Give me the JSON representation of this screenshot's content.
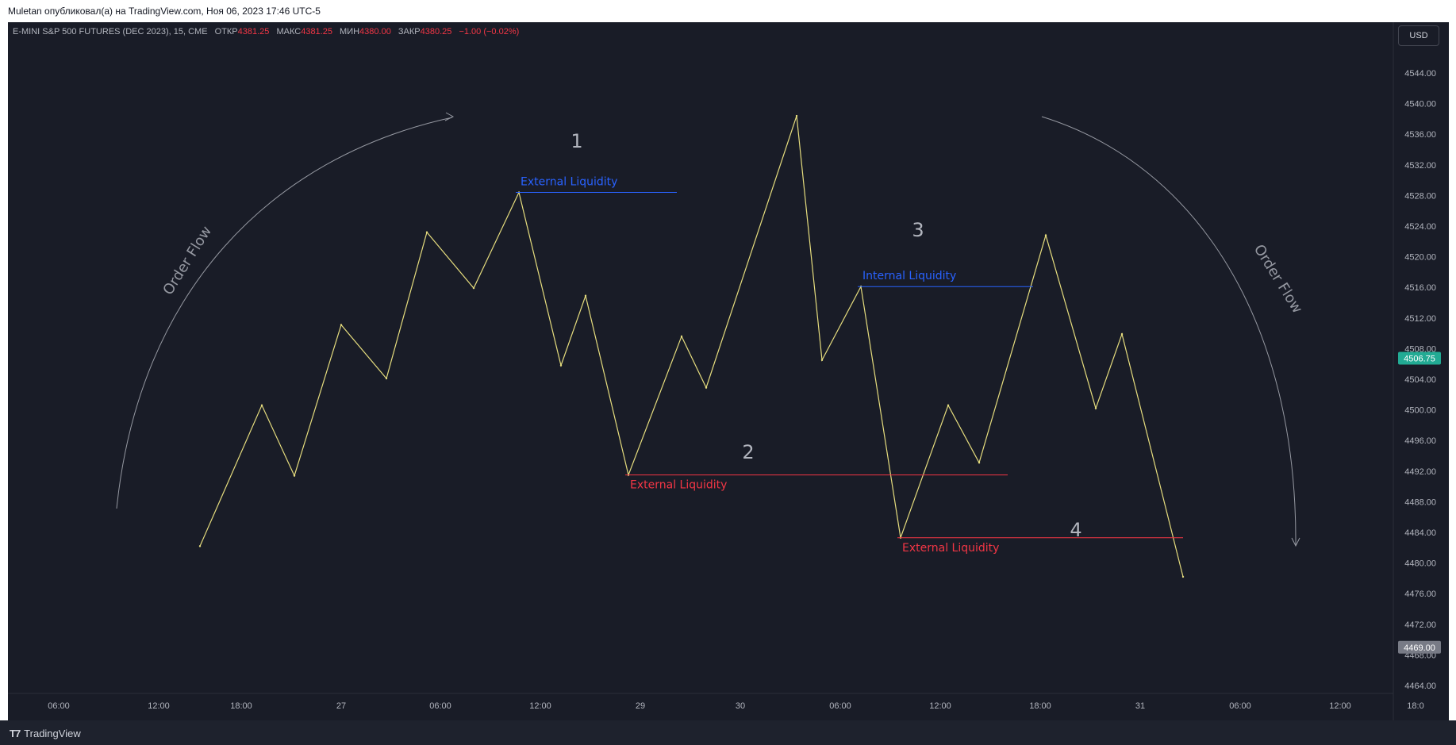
{
  "header": {
    "publisher_text": "Muletan опубликовал(а) на TradingView.com, Ноя 06, 2023 17:46 UTC-5"
  },
  "legend": {
    "symbol": "E-MINI S&P 500 FUTURES (DEC 2023), 15, CME",
    "open_label": "ОТКР",
    "open_value": "4381.25",
    "high_label": "МАКС",
    "high_value": "4381.25",
    "low_label": "МИН",
    "low_value": "4380.00",
    "close_label": "ЗАКР",
    "close_value": "4380.25",
    "change": "−1.00 (−0.02%)"
  },
  "currency_button": "USD",
  "footer": {
    "brand": "TradingView",
    "logo_icon": "tradingview-logo-icon"
  },
  "colors": {
    "background": "#191c27",
    "price_line": "#e6dd7e",
    "blue_liquidity": "#2962ff",
    "red_liquidity": "#f23645",
    "current_price_badge": "#22ab94",
    "marker_badge": "#787b86"
  },
  "chart_data": {
    "type": "line",
    "ylim": [
      4462,
      4547
    ],
    "y_ticks": [
      "4544.00",
      "4540.00",
      "4536.00",
      "4532.00",
      "4528.00",
      "4524.00",
      "4520.00",
      "4516.00",
      "4512.00",
      "4508.00",
      "4504.00",
      "4500.00",
      "4496.00",
      "4492.00",
      "4488.00",
      "4484.00",
      "4480.00",
      "4476.00",
      "4472.00",
      "4468.00",
      "4464.00"
    ],
    "x_ticks": [
      "06:00",
      "12:00",
      "18:00",
      "27",
      "06:00",
      "12:00",
      "29",
      "30",
      "06:00",
      "12:00",
      "18:00",
      "31",
      "06:00",
      "12:00",
      "18:0"
    ],
    "series": [
      {
        "values": [
          4482.2,
          4500.6,
          4491.4,
          4511.1,
          4504.1,
          4523.2,
          4515.9,
          4528.4,
          4505.8,
          4514.9,
          4491.5,
          4509.6,
          4502.9,
          4538.4,
          4506.5,
          4516.1,
          4483.3,
          4500.6,
          4493.1,
          4522.8,
          4500.2,
          4509.9,
          4478.2
        ]
      }
    ],
    "current_price": "4506.75",
    "marker_price": "4469.00",
    "annotations": [
      {
        "type": "hline",
        "label": "External Liquidity",
        "color": "blue",
        "y": 4528.4,
        "from_point": 7,
        "to_point": 12
      },
      {
        "type": "hline",
        "label": "Internal Liquidity",
        "color": "blue",
        "y": 4516.1,
        "from_point": 15,
        "to_point": 19
      },
      {
        "type": "hline",
        "label": "External Liquidity",
        "color": "red",
        "y": 4491.5,
        "from_point": 10,
        "to_point": 16
      },
      {
        "type": "hline",
        "label": "External Liquidity",
        "color": "red",
        "y": 4483.3,
        "from_point": 16,
        "to_point": 22
      }
    ],
    "numbers": [
      "1",
      "2",
      "3",
      "4"
    ],
    "order_flow_labels": [
      "Order Flow",
      "Order Flow"
    ]
  }
}
